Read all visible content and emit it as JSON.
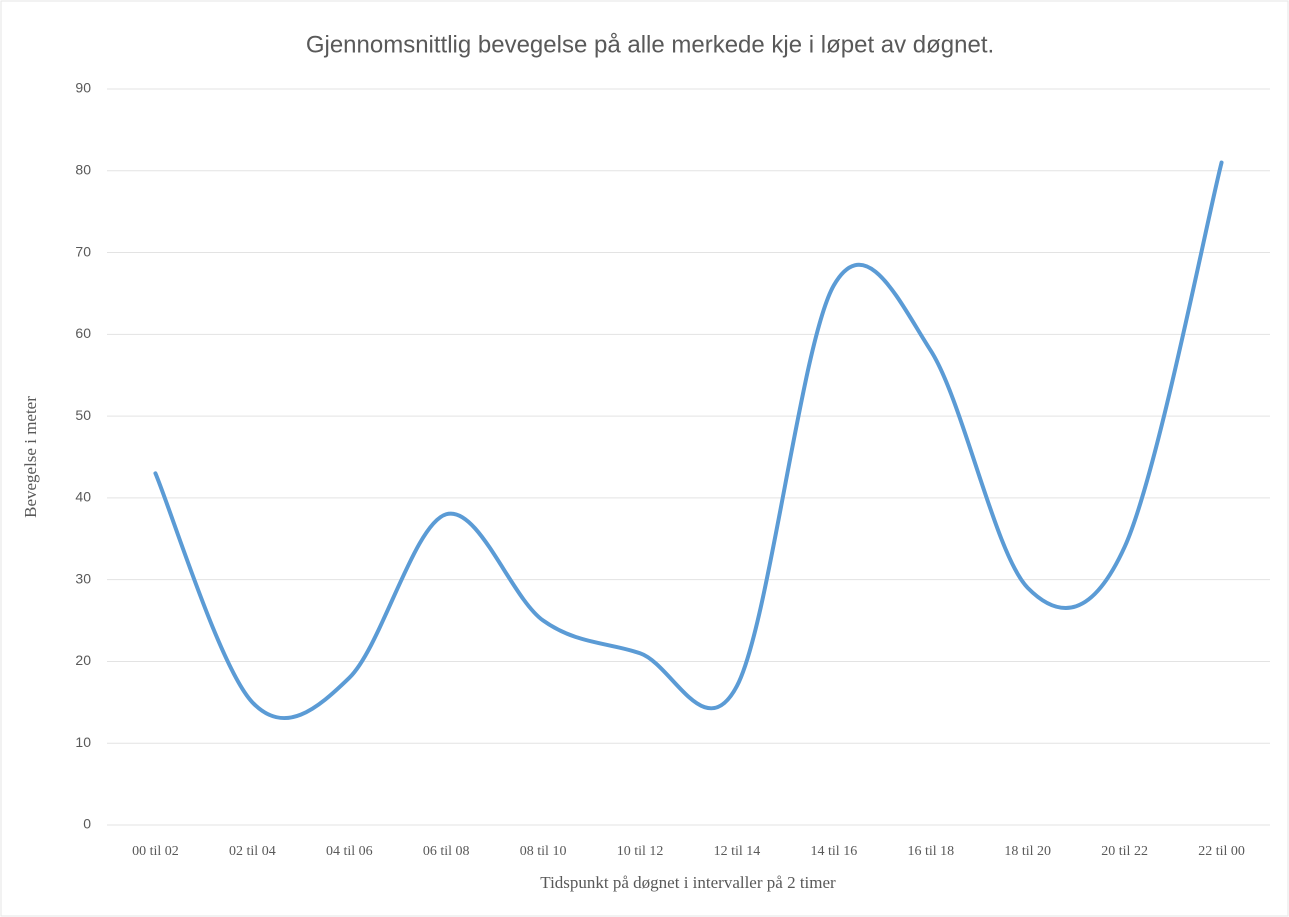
{
  "chart_data": {
    "type": "line",
    "title": "Gjennomsnittlig bevegelse på alle merkede kje i løpet av døgnet.",
    "xlabel": "Tidspunkt på døgnet i intervaller på 2 timer",
    "ylabel": "Bevegelse i meter",
    "categories": [
      "00 til 02",
      "02 til 04",
      "04 til 06",
      "06 til 08",
      "08 til 10",
      "10 til 12",
      "12 til 14",
      "14 til 16",
      "16 til 18",
      "18 til 20",
      "20 til 22",
      "22 til 00"
    ],
    "series": [
      {
        "name": "Bevegelse i meter",
        "color": "#5b9bd5",
        "values": [
          43,
          15,
          18,
          38,
          25,
          21,
          17,
          66,
          58,
          29,
          34,
          81
        ]
      }
    ],
    "ylim": [
      0,
      90
    ],
    "yticks": [
      0,
      10,
      20,
      30,
      40,
      50,
      60,
      70,
      80,
      90
    ],
    "grid": true,
    "smooth": true
  }
}
